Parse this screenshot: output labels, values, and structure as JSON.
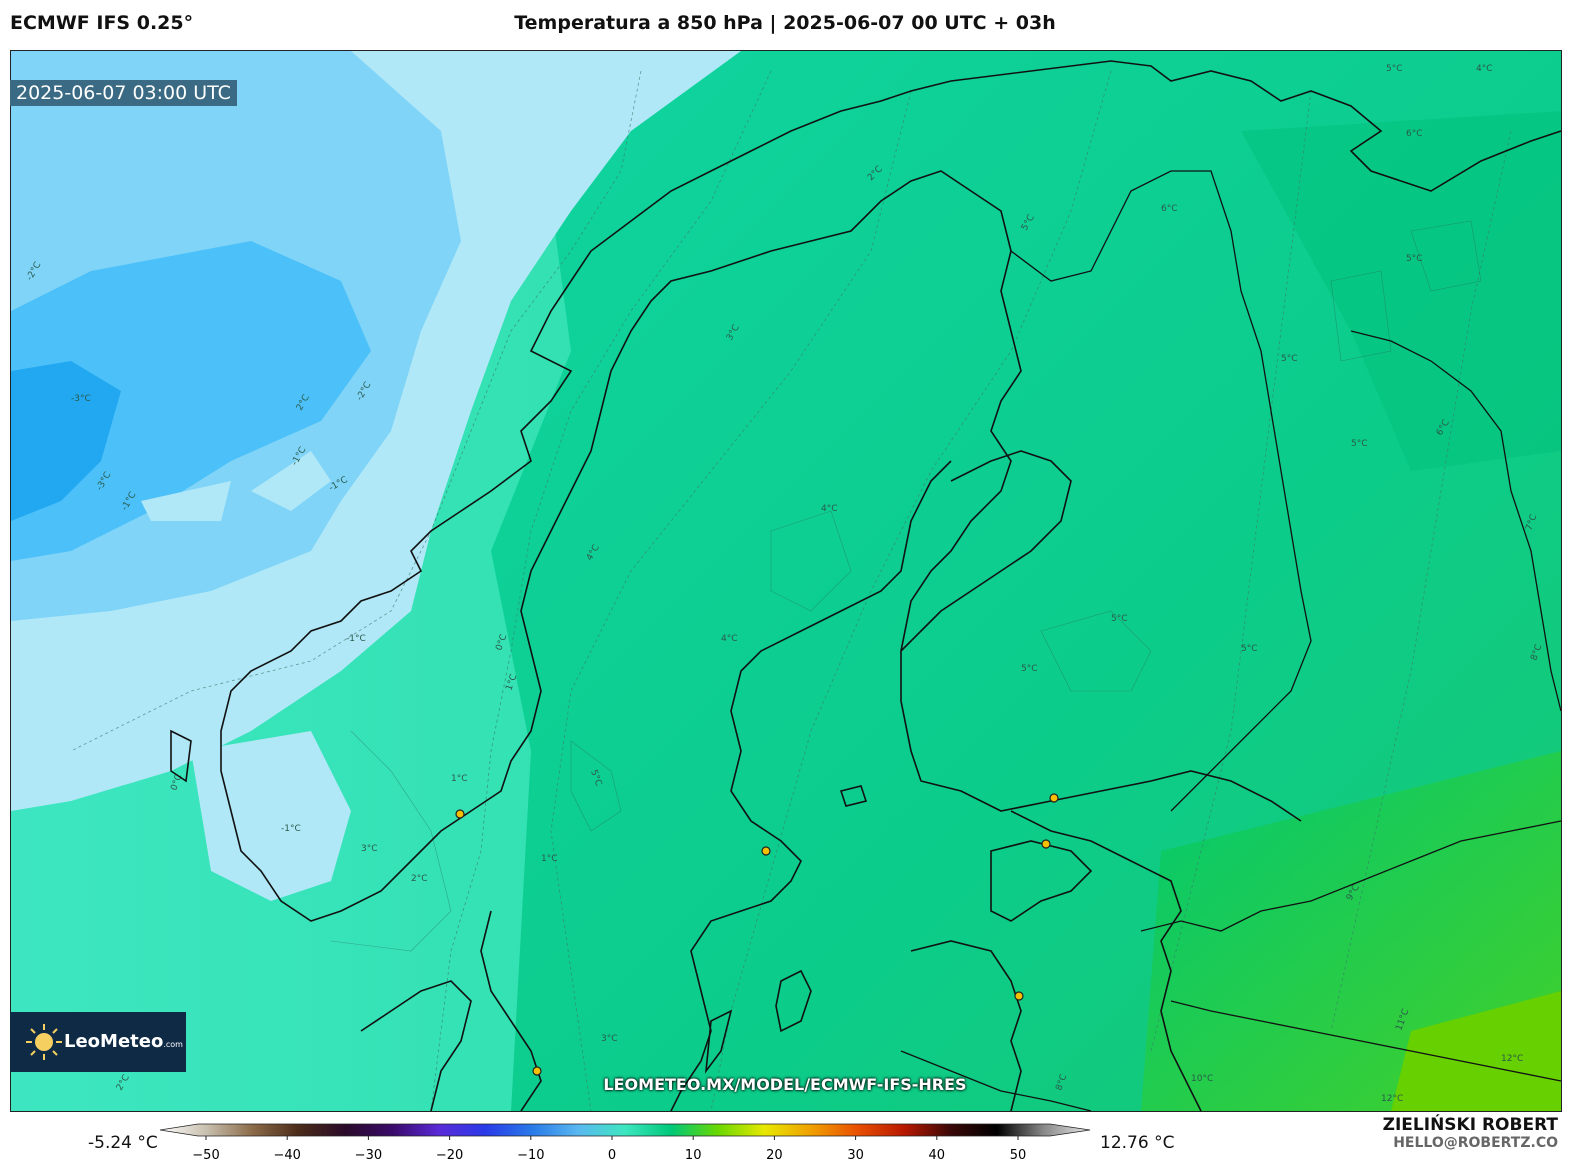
{
  "header": {
    "model": "ECMWF IFS 0.25°",
    "title": "Temperatura a 850 hPa | 2025-06-07 00 UTC + 03h"
  },
  "map": {
    "valid_time": "2025-06-07 03:00 UTC",
    "watermark": "LEOMETEO.MX/MODEL/ECMWF-IFS-HRES",
    "contour_labels": [
      "-3°C",
      "-2°C",
      "-1°C",
      "0°C",
      "1°C",
      "2°C",
      "3°C",
      "4°C",
      "5°C",
      "6°C",
      "7°C",
      "8°C",
      "9°C",
      "10°C",
      "11°C",
      "12°C"
    ]
  },
  "logo": {
    "name": "LeoMeteo",
    "suffix": ".com"
  },
  "colorbar": {
    "min_label": "-5.24 °C",
    "max_label": "12.76 °C",
    "ticks": [
      "−50",
      "−40",
      "−30",
      "−20",
      "−10",
      "0",
      "10",
      "20",
      "30",
      "40",
      "50"
    ],
    "colors": [
      "#ffffff",
      "#c8bfae",
      "#8a6a48",
      "#4a2a18",
      "#2a0a2a",
      "#3a0a6a",
      "#5a2ad8",
      "#2a3ae8",
      "#2a7ae8",
      "#5ab8f0",
      "#3de6c0",
      "#00c878",
      "#6ad800",
      "#e8e800",
      "#f0a000",
      "#e85000",
      "#b81800",
      "#3a0808",
      "#000000",
      "#888888",
      "#e8e8e8"
    ]
  },
  "credits": {
    "author": "ZIELIŃSKI ROBERT",
    "email": "HELLO@ROBERTZ.CO"
  }
}
